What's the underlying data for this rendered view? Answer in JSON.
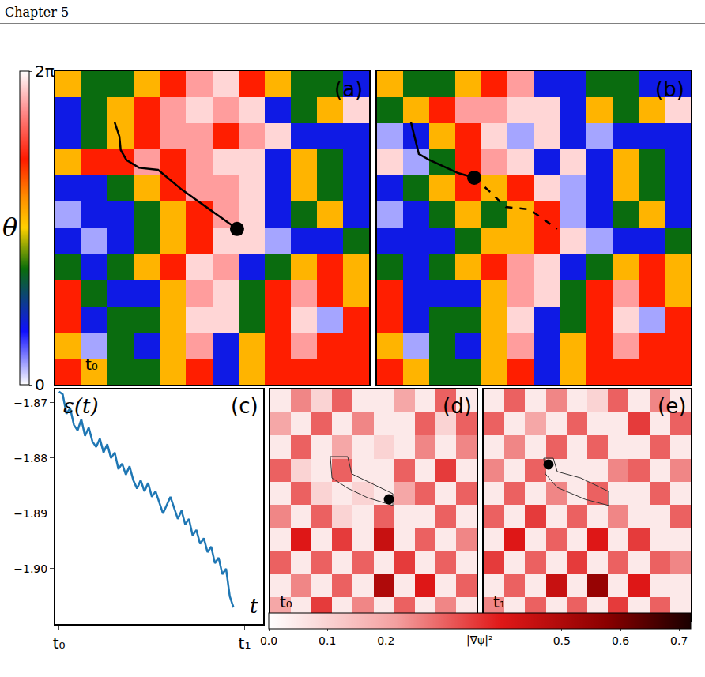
{
  "header": "Chapter 5",
  "chart_data": [
    {
      "type": "heatmap",
      "label": "(a)",
      "annotation": "t₀",
      "tick_labels": false,
      "x": [
        0.5,
        1.5,
        2.5,
        3.5,
        4.5,
        5.5,
        6.5,
        7.5,
        8.5,
        9.5,
        10.5,
        11.5
      ],
      "y": [
        11.5,
        10.5,
        9.5,
        8.5,
        7.5,
        6.5,
        5.5,
        4.5,
        3.5,
        2.5,
        1.5,
        0.5
      ],
      "xlim": [
        0,
        12
      ],
      "ylim": [
        0,
        12
      ],
      "cells": [
        [
          3.4,
          2.3,
          2.3,
          3.4,
          4.5,
          5.6,
          6.0,
          4.5,
          3.4,
          2.3,
          2.3,
          1.2
        ],
        [
          1.2,
          2.3,
          3.4,
          4.5,
          5.6,
          6.0,
          5.6,
          6.0,
          1.2,
          2.3,
          3.4,
          6.0
        ],
        [
          1.2,
          2.3,
          3.4,
          4.5,
          5.6,
          5.6,
          4.5,
          5.6,
          6.0,
          1.2,
          1.2,
          1.2
        ],
        [
          3.4,
          4.5,
          4.5,
          5.6,
          4.5,
          5.6,
          6.0,
          6.0,
          1.2,
          3.4,
          2.3,
          1.2
        ],
        [
          1.2,
          1.2,
          2.3,
          3.4,
          4.5,
          5.6,
          5.6,
          6.0,
          1.2,
          3.4,
          2.3,
          1.2
        ],
        [
          0.4,
          1.2,
          1.2,
          2.3,
          3.4,
          4.5,
          5.6,
          6.0,
          1.2,
          2.3,
          3.4,
          1.2
        ],
        [
          1.2,
          0.4,
          1.2,
          2.3,
          3.4,
          4.5,
          6.0,
          6.0,
          0.4,
          1.2,
          1.2,
          2.3
        ],
        [
          2.3,
          1.2,
          2.3,
          3.4,
          4.5,
          6.0,
          5.6,
          1.2,
          2.3,
          3.4,
          4.5,
          3.4
        ],
        [
          4.5,
          2.3,
          1.2,
          1.2,
          3.4,
          5.6,
          6.0,
          2.3,
          4.5,
          5.6,
          4.5,
          3.4
        ],
        [
          4.5,
          1.2,
          2.3,
          2.3,
          3.4,
          6.0,
          6.0,
          2.3,
          4.5,
          6.0,
          0.4,
          4.5
        ],
        [
          3.4,
          0.4,
          2.3,
          1.2,
          3.4,
          5.6,
          1.2,
          3.4,
          4.5,
          5.6,
          4.5,
          4.5
        ],
        [
          4.5,
          3.4,
          2.3,
          2.3,
          3.4,
          4.5,
          1.2,
          3.4,
          4.5,
          4.5,
          4.5,
          4.5
        ]
      ],
      "colorbar": {
        "title": "θ",
        "range": [
          0,
          6.283
        ],
        "ticks": [
          0,
          {
            "value": 6.283,
            "label": "2π"
          }
        ]
      },
      "paths": [
        {
          "x": [
            2.27,
            2.45,
            2.5,
            2.72,
            3.2,
            3.93,
            4.83,
            5.89,
            6.95
          ],
          "y": [
            10.04,
            9.5,
            8.98,
            8.6,
            8.3,
            8.22,
            7.47,
            6.71,
            5.96
          ],
          "line_style": "solid"
        }
      ],
      "points": [
        {
          "x": 6.95,
          "y": 5.96
        }
      ]
    },
    {
      "type": "heatmap",
      "label": "(b)",
      "tick_labels": false,
      "x": [
        0.5,
        1.5,
        2.5,
        3.5,
        4.5,
        5.5,
        6.5,
        7.5,
        8.5,
        9.5,
        10.5,
        11.5
      ],
      "y": [
        11.5,
        10.5,
        9.5,
        8.5,
        7.5,
        6.5,
        5.5,
        4.5,
        3.5,
        2.5,
        1.5,
        0.5
      ],
      "xlim": [
        0,
        12
      ],
      "ylim": [
        0,
        12
      ],
      "cells": [
        [
          3.4,
          2.3,
          2.3,
          3.4,
          4.5,
          5.6,
          1.2,
          1.2,
          2.3,
          2.3,
          1.2,
          1.2
        ],
        [
          2.3,
          3.4,
          4.5,
          5.6,
          5.6,
          6.0,
          6.0,
          1.2,
          3.4,
          2.3,
          3.4,
          6.0
        ],
        [
          0.4,
          1.2,
          3.4,
          4.5,
          6.0,
          0.4,
          6.0,
          1.2,
          0.4,
          1.2,
          1.2,
          1.2
        ],
        [
          6.0,
          0.4,
          2.3,
          4.5,
          5.6,
          6.0,
          1.2,
          6.0,
          1.2,
          3.4,
          2.3,
          1.2
        ],
        [
          1.2,
          2.3,
          3.4,
          4.5,
          3.4,
          4.5,
          6.0,
          0.4,
          1.2,
          3.4,
          2.3,
          1.2
        ],
        [
          0.4,
          1.2,
          2.3,
          3.4,
          2.3,
          3.4,
          4.5,
          0.4,
          1.2,
          2.3,
          3.4,
          1.2
        ],
        [
          1.2,
          1.2,
          1.2,
          2.3,
          3.4,
          3.4,
          4.5,
          6.0,
          0.4,
          1.2,
          1.2,
          2.3
        ],
        [
          2.3,
          1.2,
          2.3,
          3.4,
          4.5,
          5.6,
          6.0,
          1.2,
          2.3,
          3.4,
          4.5,
          3.4
        ],
        [
          4.5,
          1.2,
          1.2,
          1.2,
          3.4,
          5.6,
          6.0,
          2.3,
          4.5,
          5.6,
          4.5,
          3.4
        ],
        [
          4.5,
          1.2,
          2.3,
          2.3,
          3.4,
          6.0,
          1.2,
          2.3,
          4.5,
          6.0,
          0.4,
          4.5
        ],
        [
          3.4,
          0.4,
          2.3,
          1.2,
          3.4,
          5.6,
          1.2,
          3.4,
          4.5,
          5.6,
          4.5,
          4.5
        ],
        [
          4.5,
          3.4,
          2.3,
          2.3,
          3.4,
          4.5,
          1.2,
          3.4,
          4.5,
          4.5,
          4.5,
          4.5
        ]
      ],
      "paths": [
        {
          "x": [
            1.3,
            1.45,
            1.6,
            2.0,
            2.5,
            3.1,
            3.72
          ],
          "y": [
            10.04,
            9.4,
            8.83,
            8.6,
            8.37,
            8.1,
            7.92
          ],
          "line_style": "solid"
        },
        {
          "x": [
            3.72,
            4.3,
            4.92,
            5.83,
            6.89
          ],
          "y": [
            7.92,
            7.4,
            6.8,
            6.71,
            5.96
          ],
          "line_style": "dashed"
        }
      ],
      "points": [
        {
          "x": 3.72,
          "y": 7.92
        }
      ]
    },
    {
      "type": "line",
      "label": "(c)",
      "y_label": "ε(t)",
      "x_label": "t",
      "color": "#1f77b4",
      "grid": false,
      "x": [
        0,
        2,
        4,
        6,
        8,
        10,
        12,
        14,
        16,
        18,
        20,
        22,
        24,
        26,
        28,
        30,
        32,
        34,
        36,
        38,
        40,
        42,
        44,
        46,
        48,
        50,
        52,
        54,
        56,
        58,
        60,
        62,
        64,
        66,
        68,
        70,
        72,
        74,
        76,
        78,
        80,
        82,
        84,
        86,
        88,
        90,
        92,
        94
      ],
      "values": [
        -1.868,
        -1.8685,
        -1.872,
        -1.871,
        -1.874,
        -1.875,
        -1.873,
        -1.876,
        -1.8745,
        -1.877,
        -1.878,
        -1.8765,
        -1.879,
        -1.8775,
        -1.88,
        -1.879,
        -1.882,
        -1.881,
        -1.883,
        -1.8815,
        -1.884,
        -1.8855,
        -1.884,
        -1.886,
        -1.8845,
        -1.887,
        -1.886,
        -1.888,
        -1.89,
        -1.8885,
        -1.887,
        -1.889,
        -1.891,
        -1.8895,
        -1.892,
        -1.891,
        -1.894,
        -1.893,
        -1.8955,
        -1.8945,
        -1.897,
        -1.896,
        -1.899,
        -1.898,
        -1.901,
        -1.9,
        -1.905,
        -1.907
      ],
      "xlim": [
        -2,
        110
      ],
      "xticks": [
        {
          "value": 0,
          "label": "t₀"
        },
        {
          "value": 100,
          "label": "t₁"
        }
      ],
      "ylim": [
        -1.91,
        -1.8676
      ],
      "yticks": [
        {
          "value": -1.87,
          "label": "−1.87"
        },
        {
          "value": -1.88,
          "label": "−1.88"
        },
        {
          "value": -1.89,
          "label": "−1.89"
        },
        {
          "value": -1.9,
          "label": "−1.90"
        }
      ]
    },
    {
      "type": "heatmap",
      "label": "(d)",
      "annotation": "t₀",
      "tick_labels": false,
      "x": [
        0.5,
        1.5,
        2.5,
        3.5,
        4.5,
        5.5,
        6.5,
        7.5,
        8.5,
        9.5
      ],
      "y": [
        9.5,
        8.5,
        7.5,
        6.5,
        5.5,
        4.5,
        3.5,
        2.5,
        1.5,
        0.5
      ],
      "xlim": [
        0,
        10
      ],
      "ylim": [
        0,
        10
      ],
      "cells": [
        [
          0.05,
          0.25,
          0.1,
          0.3,
          0.05,
          0.05,
          0.2,
          0.05,
          0.3,
          0.05
        ],
        [
          0.2,
          0.05,
          0.3,
          0.05,
          0.25,
          0.05,
          0.05,
          0.3,
          0.1,
          0.3
        ],
        [
          0.05,
          0.3,
          0.05,
          0.2,
          0.05,
          0.1,
          0.05,
          0.25,
          0.05,
          0.25
        ],
        [
          0.3,
          0.1,
          0.05,
          0.3,
          0.05,
          0.05,
          0.3,
          0.05,
          0.35,
          0.05
        ],
        [
          0.05,
          0.3,
          0.1,
          0.05,
          0.1,
          0.05,
          0.2,
          0.3,
          0.05,
          0.3
        ],
        [
          0.25,
          0.05,
          0.3,
          0.1,
          0.05,
          0.3,
          0.05,
          0.05,
          0.3,
          0.05
        ],
        [
          0.05,
          0.4,
          0.05,
          0.35,
          0.05,
          0.45,
          0.05,
          0.3,
          0.05,
          0.25
        ],
        [
          0.3,
          0.05,
          0.3,
          0.05,
          0.3,
          0.05,
          0.35,
          0.05,
          0.3,
          0.05
        ],
        [
          0.05,
          0.25,
          0.05,
          0.3,
          0.05,
          0.5,
          0.05,
          0.4,
          0.05,
          0.3
        ],
        [
          0.2,
          0.05,
          0.35,
          0.05,
          0.25,
          0.05,
          0.3,
          0.05,
          0.25,
          0.05
        ]
      ],
      "colorbar": {
        "title": "|∇ψ|²",
        "range": [
          0,
          0.72
        ],
        "ticks": [
          {
            "value": 0,
            "label": "0.0"
          },
          0.1,
          0.2,
          0.5,
          0.6,
          0.7
        ]
      },
      "paths": [
        {
          "x": [
            2.91,
            3.75,
            3.95,
            4.9,
            5.94,
            5.94,
            4.71,
            3.75,
            2.99,
            2.91
          ],
          "y": [
            7.09,
            7.09,
            6.34,
            5.92,
            5.48,
            4.97,
            5.31,
            5.72,
            6.16,
            7.09
          ],
          "line_style": "solid"
        }
      ],
      "points": [
        {
          "x": 5.75,
          "y": 5.24
        }
      ]
    },
    {
      "type": "heatmap",
      "label": "(e)",
      "annotation": "t₁",
      "tick_labels": false,
      "x": [
        0.5,
        1.5,
        2.5,
        3.5,
        4.5,
        5.5,
        6.5,
        7.5,
        8.5,
        9.5
      ],
      "y": [
        9.5,
        8.5,
        7.5,
        6.5,
        5.5,
        4.5,
        3.5,
        2.5,
        1.5,
        0.5
      ],
      "xlim": [
        0,
        10
      ],
      "ylim": [
        0,
        10
      ],
      "cells": [
        [
          0.05,
          0.3,
          0.05,
          0.25,
          0.05,
          0.1,
          0.3,
          0.05,
          0.25,
          0.05
        ],
        [
          0.3,
          0.05,
          0.2,
          0.05,
          0.3,
          0.05,
          0.05,
          0.35,
          0.05,
          0.3
        ],
        [
          0.05,
          0.25,
          0.05,
          0.3,
          0.05,
          0.3,
          0.05,
          0.05,
          0.3,
          0.05
        ],
        [
          0.25,
          0.05,
          0.3,
          0.05,
          0.05,
          0.05,
          0.25,
          0.3,
          0.05,
          0.25
        ],
        [
          0.05,
          0.3,
          0.05,
          0.25,
          0.05,
          0.3,
          0.05,
          0.05,
          0.3,
          0.05
        ],
        [
          0.3,
          0.05,
          0.35,
          0.05,
          0.3,
          0.05,
          0.25,
          0.05,
          0.05,
          0.3
        ],
        [
          0.05,
          0.4,
          0.05,
          0.3,
          0.05,
          0.4,
          0.05,
          0.35,
          0.05,
          0.05
        ],
        [
          0.35,
          0.05,
          0.3,
          0.05,
          0.35,
          0.05,
          0.3,
          0.05,
          0.3,
          0.25
        ],
        [
          0.05,
          0.3,
          0.05,
          0.45,
          0.05,
          0.55,
          0.05,
          0.4,
          0.05,
          0.05
        ],
        [
          0.25,
          0.05,
          0.3,
          0.05,
          0.3,
          0.05,
          0.35,
          0.05,
          0.3,
          0.05
        ]
      ],
      "paths": [
        {
          "x": [
            2.9,
            3.36,
            3.55,
            4.69,
            6.03,
            6.03,
            4.89,
            3.55,
            2.98,
            2.9
          ],
          "y": [
            7.02,
            7.02,
            6.44,
            6.16,
            5.58,
            4.97,
            5.24,
            5.75,
            6.34,
            7.02
          ],
          "line_style": "solid"
        }
      ],
      "points": [
        {
          "x": 3.13,
          "y": 6.75
        }
      ]
    }
  ]
}
